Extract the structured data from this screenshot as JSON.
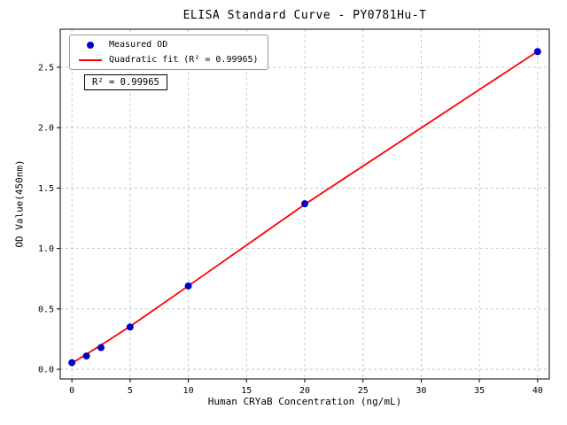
{
  "chart_data": {
    "type": "scatter",
    "title": "ELISA Standard Curve - PY0781Hu-T",
    "xlabel": "Human CRYaB Concentration (ng/mL)",
    "ylabel": "OD Value(450nm)",
    "xlim": [
      -1,
      41
    ],
    "ylim": [
      -0.08,
      2.815
    ],
    "grid": true,
    "legend_position": "upper left",
    "xticks": [
      0,
      5,
      10,
      15,
      20,
      25,
      30,
      35,
      40
    ],
    "xtick_labels": [
      "0",
      "5",
      "10",
      "15",
      "20",
      "25",
      "30",
      "35",
      "40"
    ],
    "yticks": [
      0,
      0.5,
      1,
      1.5,
      2,
      2.5
    ],
    "ytick_labels": [
      "0.0",
      "0.5",
      "1.0",
      "1.5",
      "2.0",
      "2.5"
    ],
    "series": [
      {
        "name": "Measured OD",
        "type": "scatter",
        "color": "#0000cd",
        "marker": "circle",
        "x": [
          0,
          1.25,
          2.5,
          5,
          10,
          20,
          40
        ],
        "y": [
          0.055,
          0.11,
          0.18,
          0.35,
          0.69,
          1.37,
          2.63
        ]
      },
      {
        "name": "Quadratic fit (R² = 0.99965)",
        "type": "line",
        "color": "#ff0000",
        "x": [
          0,
          1.25,
          2.5,
          5,
          10,
          20,
          40
        ],
        "y": [
          0.05,
          0.125,
          0.2,
          0.355,
          0.69,
          1.365,
          2.632
        ]
      }
    ],
    "annotation": "R² = 0.99965",
    "r_squared": 0.99965
  }
}
